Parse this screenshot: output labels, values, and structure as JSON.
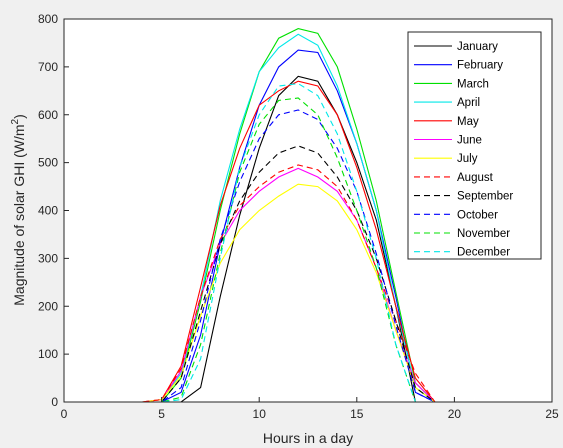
{
  "chart_data": {
    "type": "line",
    "title": "",
    "xlabel": "Hours in a day",
    "ylabel_main": "Magnitude of solar GHI (W/m",
    "ylabel_sup": "2",
    "ylabel_end": ")",
    "xlim": [
      0,
      25
    ],
    "ylim": [
      0,
      800
    ],
    "xticks": [
      0,
      5,
      10,
      15,
      20,
      25
    ],
    "yticks": [
      0,
      100,
      200,
      300,
      400,
      500,
      600,
      700,
      800
    ],
    "grid": false,
    "legend_position": "top-right",
    "x": [
      1,
      2,
      3,
      4,
      5,
      6,
      7,
      8,
      9,
      10,
      11,
      12,
      13,
      14,
      15,
      16,
      17,
      18,
      19,
      20,
      21,
      22,
      23,
      24
    ],
    "series": [
      {
        "name": "January",
        "color": "#000000",
        "dash": "solid",
        "values": [
          0,
          0,
          0,
          0,
          0,
          0,
          30,
          220,
          390,
          530,
          640,
          680,
          670,
          600,
          500,
          380,
          200,
          0,
          0,
          0,
          0,
          0,
          0,
          0
        ]
      },
      {
        "name": "February",
        "color": "#0000ff",
        "dash": "solid",
        "values": [
          0,
          0,
          0,
          0,
          0,
          20,
          140,
          330,
          490,
          620,
          700,
          735,
          730,
          650,
          540,
          400,
          220,
          20,
          0,
          0,
          0,
          0,
          0,
          0
        ]
      },
      {
        "name": "March",
        "color": "#00e000",
        "dash": "solid",
        "values": [
          0,
          0,
          0,
          0,
          0,
          50,
          210,
          400,
          560,
          690,
          760,
          780,
          770,
          700,
          570,
          420,
          230,
          40,
          0,
          0,
          0,
          0,
          0,
          0
        ]
      },
      {
        "name": "April",
        "color": "#00e8e8",
        "dash": "solid",
        "values": [
          0,
          0,
          0,
          0,
          5,
          60,
          220,
          420,
          570,
          690,
          740,
          768,
          745,
          660,
          540,
          400,
          200,
          30,
          0,
          0,
          0,
          0,
          0,
          0
        ]
      },
      {
        "name": "May",
        "color": "#ff0000",
        "dash": "solid",
        "values": [
          0,
          0,
          0,
          0,
          5,
          75,
          240,
          410,
          530,
          620,
          650,
          670,
          660,
          600,
          490,
          360,
          200,
          50,
          0,
          0,
          0,
          0,
          0,
          0
        ]
      },
      {
        "name": "June",
        "color": "#ff00ff",
        "dash": "solid",
        "values": [
          0,
          0,
          0,
          0,
          5,
          65,
          220,
          330,
          400,
          440,
          470,
          488,
          470,
          440,
          380,
          280,
          150,
          40,
          0,
          0,
          0,
          0,
          0,
          0
        ]
      },
      {
        "name": "July",
        "color": "#ffff00",
        "dash": "solid",
        "values": [
          0,
          0,
          0,
          0,
          5,
          55,
          180,
          290,
          360,
          400,
          430,
          455,
          450,
          420,
          360,
          270,
          150,
          30,
          0,
          0,
          0,
          0,
          0,
          0
        ]
      },
      {
        "name": "August",
        "color": "#ff0000",
        "dash": "dashed",
        "values": [
          0,
          0,
          0,
          0,
          5,
          70,
          220,
          340,
          410,
          450,
          480,
          495,
          485,
          450,
          380,
          280,
          170,
          60,
          0,
          0,
          0,
          0,
          0,
          0
        ]
      },
      {
        "name": "September",
        "color": "#000000",
        "dash": "dashed",
        "values": [
          0,
          0,
          0,
          0,
          0,
          50,
          190,
          330,
          420,
          480,
          520,
          535,
          520,
          470,
          400,
          300,
          170,
          30,
          0,
          0,
          0,
          0,
          0,
          0
        ]
      },
      {
        "name": "October",
        "color": "#0000ff",
        "dash": "dashed",
        "values": [
          0,
          0,
          0,
          0,
          0,
          30,
          170,
          340,
          460,
          550,
          600,
          610,
          590,
          530,
          440,
          310,
          160,
          20,
          0,
          0,
          0,
          0,
          0,
          0
        ]
      },
      {
        "name": "November",
        "color": "#00e000",
        "dash": "dashed",
        "values": [
          0,
          0,
          0,
          0,
          0,
          10,
          120,
          310,
          480,
          580,
          630,
          635,
          600,
          510,
          400,
          280,
          120,
          0,
          0,
          0,
          0,
          0,
          0,
          0
        ]
      },
      {
        "name": "December",
        "color": "#00e8e8",
        "dash": "dashed",
        "values": [
          0,
          0,
          0,
          0,
          0,
          5,
          90,
          300,
          490,
          600,
          660,
          665,
          640,
          560,
          440,
          300,
          120,
          0,
          0,
          0,
          0,
          0,
          0,
          0
        ]
      }
    ]
  }
}
